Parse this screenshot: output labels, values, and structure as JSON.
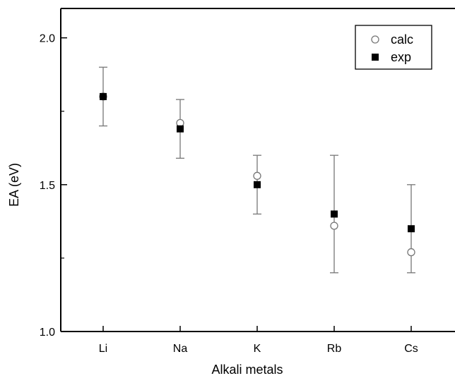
{
  "chart_data": {
    "type": "scatter",
    "categories": [
      "Li",
      "Na",
      "K",
      "Rb",
      "Cs"
    ],
    "series": [
      {
        "name": "calc",
        "marker": "open-circle",
        "values": [
          1.8,
          1.71,
          1.53,
          1.36,
          1.27
        ]
      },
      {
        "name": "exp",
        "marker": "filled-square",
        "values": [
          1.8,
          1.69,
          1.5,
          1.4,
          1.35
        ],
        "error_low": [
          1.7,
          1.59,
          1.4,
          1.2,
          1.2
        ],
        "error_high": [
          1.9,
          1.79,
          1.6,
          1.6,
          1.5
        ]
      }
    ],
    "xlabel": "Alkali metals",
    "ylabel": "EA (eV)",
    "ylim": [
      1.0,
      2.1
    ],
    "yticks": [
      1.0,
      1.5,
      2.0
    ],
    "ytick_labels": [
      "1.0",
      "1.5",
      "2.0"
    ],
    "grid": false,
    "legend_position": "top-right",
    "colors": {
      "axis": "#000000",
      "error_bar": "#777777",
      "exp_marker": "#000000",
      "calc_marker": "#777777",
      "background": "#ffffff"
    }
  }
}
